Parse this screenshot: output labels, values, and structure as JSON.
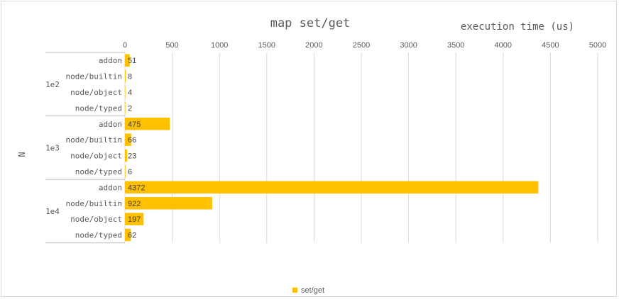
{
  "chart_data": {
    "type": "bar",
    "orientation": "horizontal",
    "title": "map set/get",
    "xlabel": "execution time (us)",
    "ylabel": "N",
    "xlim": [
      0,
      5000
    ],
    "xticks": [
      0,
      500,
      1000,
      1500,
      2000,
      2500,
      3000,
      3500,
      4000,
      4500,
      5000
    ],
    "grid": true,
    "legend_position": "bottom",
    "color": "#FFC000",
    "groups": [
      {
        "name": "1e2",
        "categories": [
          "addon",
          "node/builtin",
          "node/object",
          "node/typed"
        ],
        "values": [
          51,
          8,
          4,
          2
        ]
      },
      {
        "name": "1e3",
        "categories": [
          "addon",
          "node/builtin",
          "node/object",
          "node/typed"
        ],
        "values": [
          475,
          66,
          23,
          6
        ]
      },
      {
        "name": "1e4",
        "categories": [
          "addon",
          "node/builtin",
          "node/object",
          "node/typed"
        ],
        "values": [
          4372,
          922,
          197,
          62
        ]
      }
    ],
    "series": [
      {
        "name": "set/get"
      }
    ]
  }
}
